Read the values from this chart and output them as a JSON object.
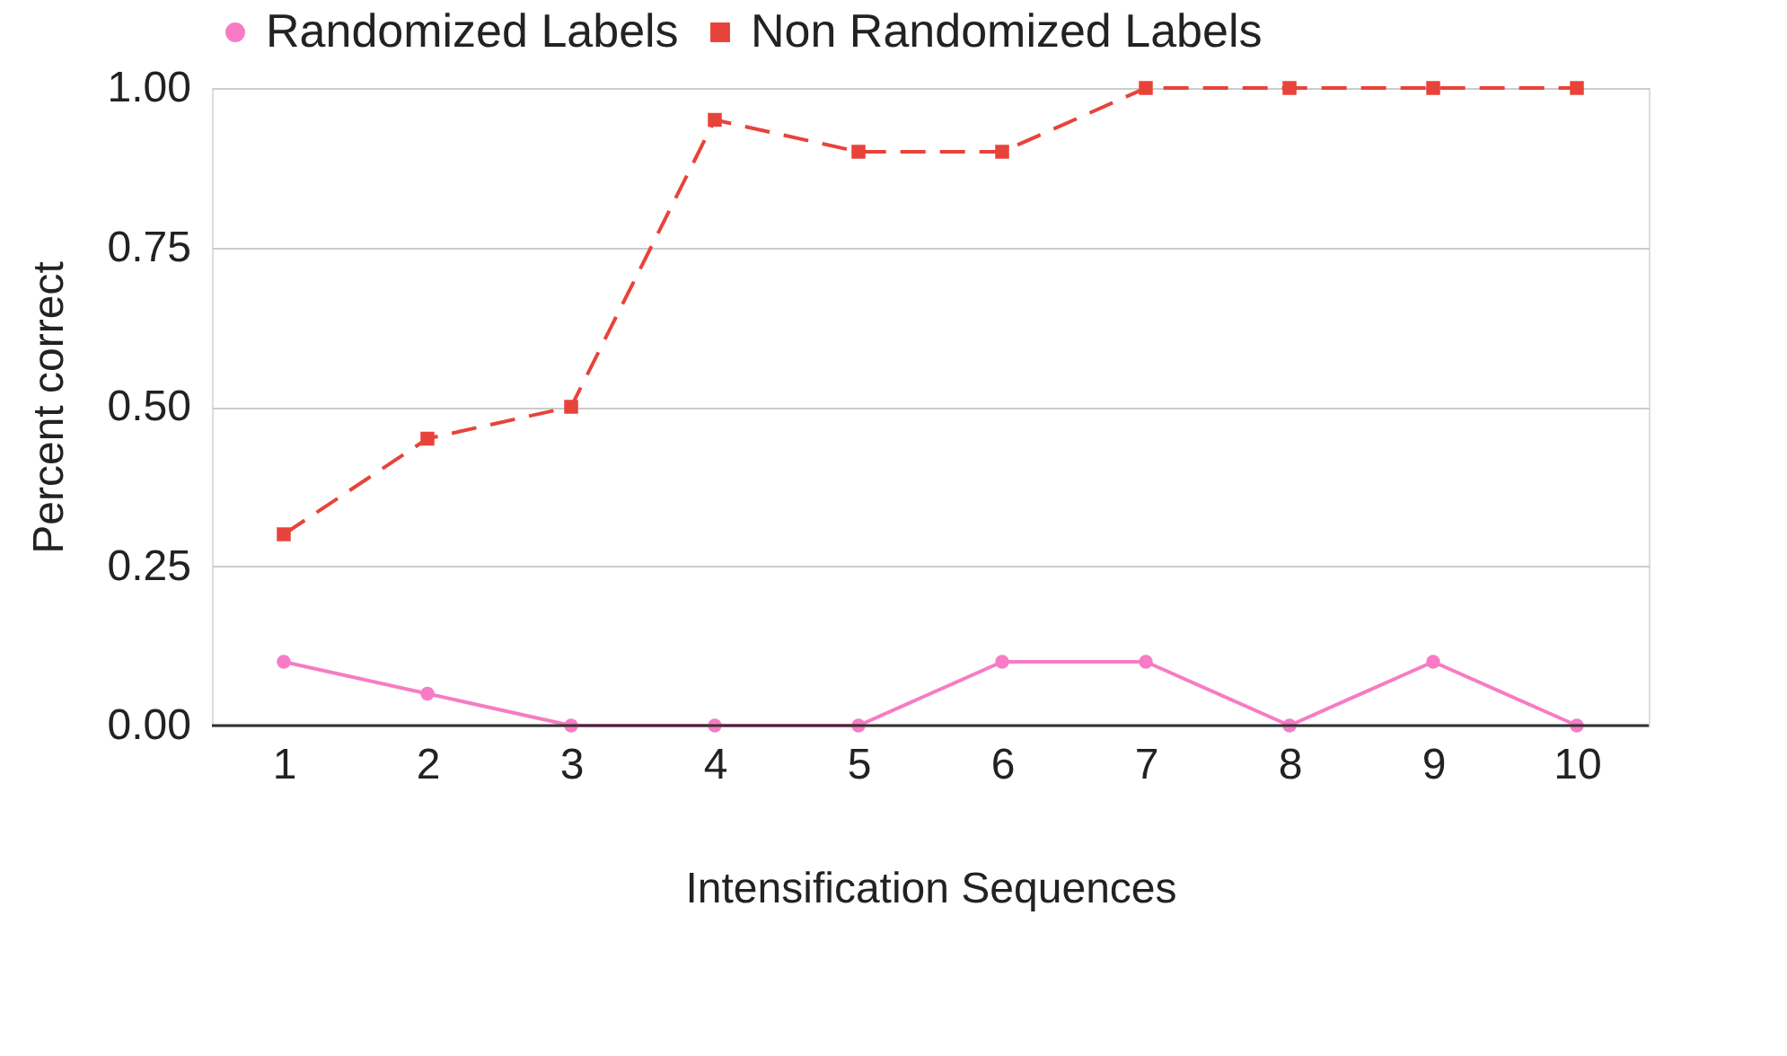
{
  "chart_data": {
    "type": "line",
    "xlabel": "Intensification Sequences",
    "ylabel": "Percent correct",
    "categories": [
      "1",
      "2",
      "3",
      "4",
      "5",
      "6",
      "7",
      "8",
      "9",
      "10"
    ],
    "series": [
      {
        "name": "Randomized Labels",
        "color": "#f77bc5",
        "values": [
          0.1,
          0.05,
          0,
          0,
          0,
          0.1,
          0.1,
          0,
          0.1,
          0
        ],
        "marker": "circle",
        "line_style": "solid"
      },
      {
        "name": "Non Randomized Labels",
        "color": "#e8433a",
        "values": [
          0.3,
          0.45,
          0.5,
          0.95,
          0.9,
          0.9,
          1,
          1,
          1,
          1
        ],
        "marker": "square",
        "line_style": "dashed"
      }
    ],
    "ylim": [
      0,
      1
    ],
    "yticks": [
      {
        "value": 0,
        "label": "0.00"
      },
      {
        "value": 0.25,
        "label": "0.25"
      },
      {
        "value": 0.5,
        "label": "0.50"
      },
      {
        "value": 0.75,
        "label": "0.75"
      },
      {
        "value": 1,
        "label": "1.00"
      }
    ],
    "grid": "y",
    "legend": "top"
  }
}
